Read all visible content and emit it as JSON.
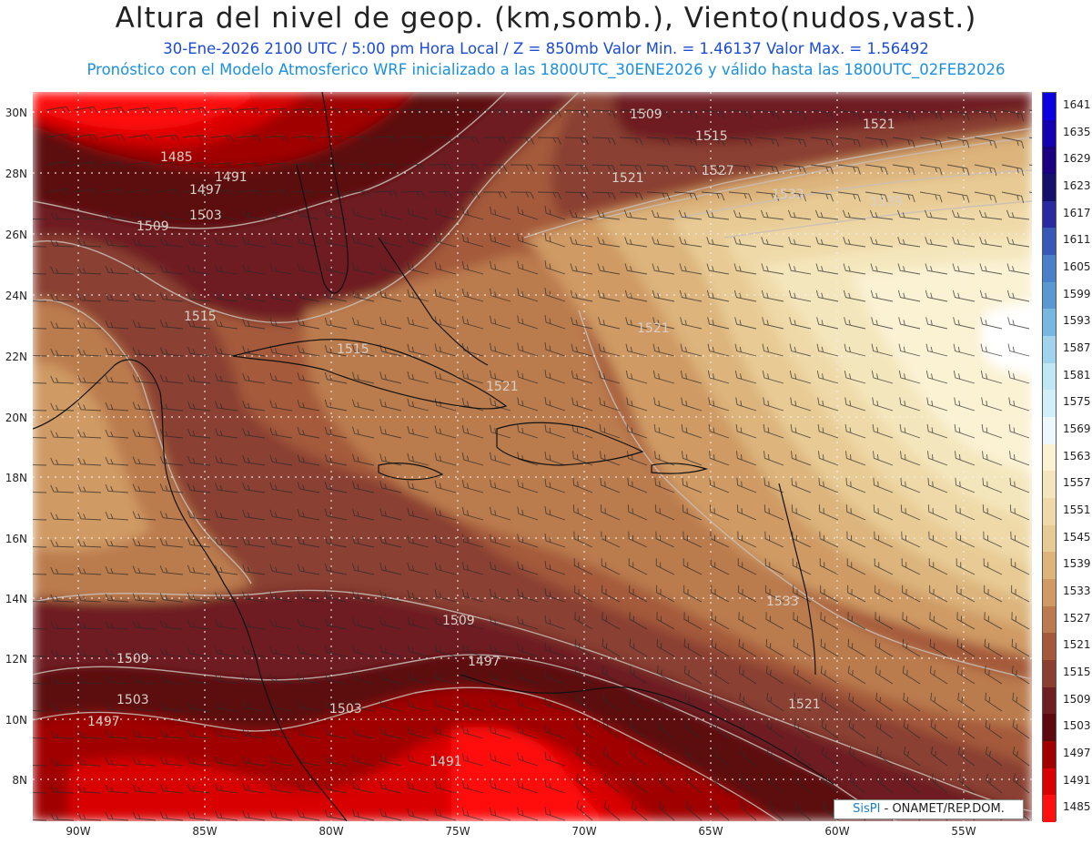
{
  "header": {
    "title": "Altura del nivel de geop. (km,somb.), Viento(nudos,vast.)",
    "subtitle": "30-Ene-2026  2100 UTC / 5:00 pm Hora Local / Z = 850mb     Valor Min. = 1.46137  Valor Max. = 1.56492",
    "caption": "Pronóstico con el Modelo Atmosferico WRF inicializado a las 1800UTC_30ENE2026 y válido hasta las  1800UTC_02FEB2026"
  },
  "map": {
    "lat_labels": [
      "30N",
      "28N",
      "26N",
      "24N",
      "22N",
      "20N",
      "18N",
      "16N",
      "14N",
      "12N",
      "10N",
      "8N"
    ],
    "lon_labels": [
      "90W",
      "85W",
      "80W",
      "75W",
      "70W",
      "65W",
      "60W",
      "55W"
    ],
    "contour_labels": [
      "1485",
      "1491",
      "1497",
      "1503",
      "1509",
      "1509",
      "1515",
      "1515",
      "1515",
      "1521",
      "1521",
      "1527",
      "1521",
      "1533",
      "1539",
      "1509",
      "1509",
      "1503",
      "1503",
      "1497",
      "1497",
      "1491",
      "1521",
      "1533",
      "1521"
    ]
  },
  "legend": {
    "levels": [
      "1641",
      "1635",
      "1629",
      "1623",
      "1617",
      "1611",
      "1605",
      "1599",
      "1593",
      "1587",
      "1581",
      "1575",
      "1569",
      "1563",
      "1557",
      "1551",
      "1545",
      "1539",
      "1533",
      "1527",
      "1521",
      "1515",
      "1509",
      "1503",
      "1497",
      "1491",
      "1485"
    ],
    "colors": [
      "#0a00e0",
      "#1400b0",
      "#1a0080",
      "#15106a",
      "#2a2aa0",
      "#3858b8",
      "#4a80c8",
      "#5a98d2",
      "#78b8e0",
      "#a0d4ec",
      "#c0e8f4",
      "#d2eef8",
      "#eef8fc",
      "#fbf2d4",
      "#f4e6bc",
      "#efd9a8",
      "#e8cb94",
      "#dcb47c",
      "#cf9a64",
      "#bb7b4e",
      "#a45a3a",
      "#8a3f30",
      "#6e1f22",
      "#5c0a10",
      "#a00000",
      "#d80000",
      "#ff1010"
    ]
  },
  "credit": {
    "brand": "SisPI",
    "text": " - ONAMET/REP.DOM."
  }
}
